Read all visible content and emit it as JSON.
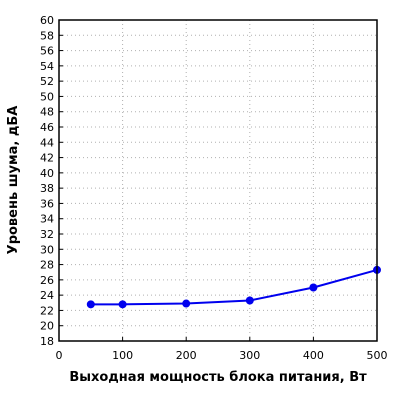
{
  "chart_data": {
    "type": "line",
    "title": "",
    "xlabel": "Выходная мощность блока питания, Вт",
    "ylabel": "Уровень шума, дБА",
    "xlim": [
      0,
      500
    ],
    "ylim": [
      18,
      60
    ],
    "x_ticks": [
      0,
      100,
      200,
      300,
      400,
      500
    ],
    "y_ticks": [
      18,
      20,
      22,
      24,
      26,
      28,
      30,
      32,
      34,
      36,
      38,
      40,
      42,
      44,
      46,
      48,
      50,
      52,
      54,
      56,
      58,
      60
    ],
    "grid": true,
    "legend": "none",
    "series": [
      {
        "color": "#0000ee",
        "x": [
          50,
          100,
          200,
          300,
          400,
          500
        ],
        "y": [
          22.8,
          22.8,
          22.9,
          23.3,
          25.0,
          27.3
        ]
      }
    ]
  }
}
